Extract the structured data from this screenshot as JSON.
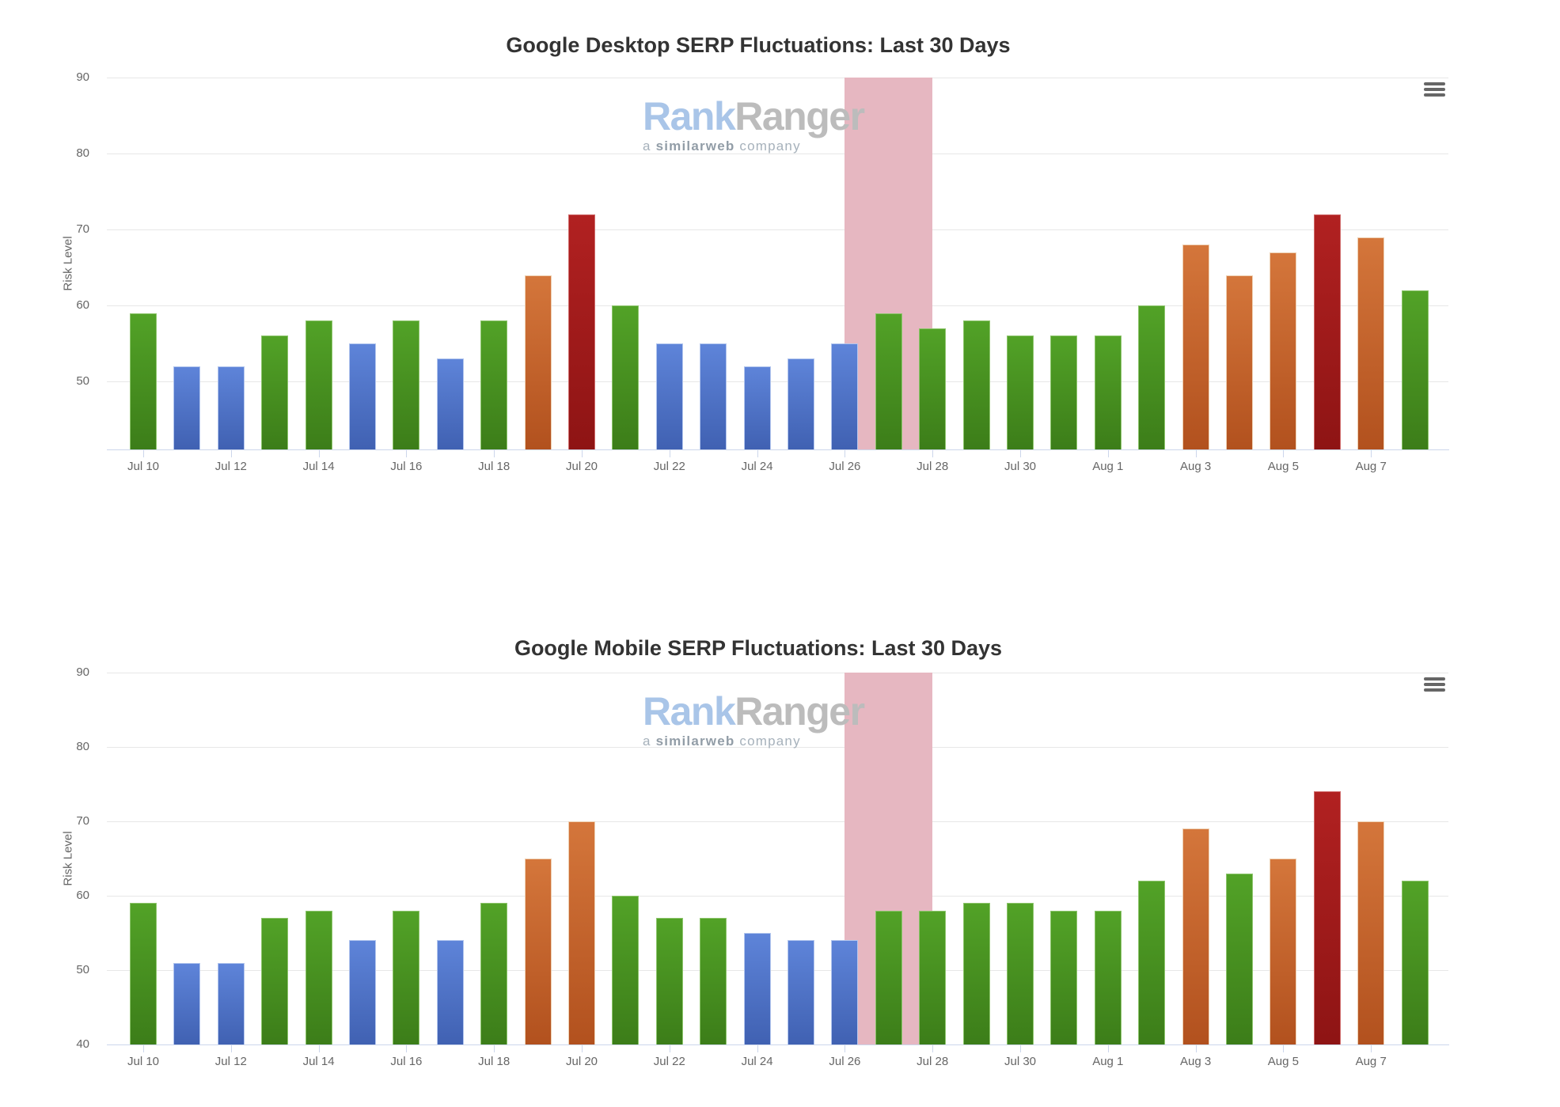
{
  "watermark": {
    "brand_part1": "Rank",
    "brand_part2": "Ranger",
    "tagline_prefix": "a",
    "tagline_bold": "similarweb",
    "tagline_suffix": "company",
    "brand_part1_color": "#a9c5e8",
    "brand_part2_color": "#bcbcbc"
  },
  "colors": {
    "background": "#ffffff",
    "title": "#333333",
    "axis_label": "#666666",
    "gridline": "#e7e7e7",
    "axis_line": "#ccd6eb",
    "highlight_band": "#e6b7c1",
    "menu_icon": "#666666"
  },
  "palette": {
    "blue": {
      "top": "#5e84d9",
      "bottom": "#4061b2",
      "border": "#b3c6ee"
    },
    "green": {
      "top": "#52a227",
      "bottom": "#3c7d19",
      "border": "#8dc56c"
    },
    "orange": {
      "top": "#d4763b",
      "bottom": "#b2511e",
      "border": "#eed0b2"
    },
    "red": {
      "top": "#b12121",
      "bottom": "#8e1414",
      "border": "#cf6b6b"
    }
  },
  "color_thresholds": {
    "blue_max": 55,
    "green_max": 63,
    "orange_max": 70
  },
  "chart_data": [
    {
      "type": "bar",
      "title": "Google Desktop SERP Fluctuations: Last 30 Days",
      "ylabel": "Risk Level",
      "xlabel": "",
      "categories": [
        "Jul 10",
        "Jul 11",
        "Jul 12",
        "Jul 13",
        "Jul 14",
        "Jul 15",
        "Jul 16",
        "Jul 17",
        "Jul 18",
        "Jul 19",
        "Jul 20",
        "Jul 21",
        "Jul 22",
        "Jul 23",
        "Jul 24",
        "Jul 25",
        "Jul 26",
        "Jul 27",
        "Jul 28",
        "Jul 29",
        "Jul 30",
        "Jul 31",
        "Aug 1",
        "Aug 2",
        "Aug 3",
        "Aug 4",
        "Aug 5",
        "Aug 6",
        "Aug 7",
        "Aug 8"
      ],
      "values": [
        59,
        52,
        52,
        56,
        58,
        55,
        58,
        53,
        58,
        64,
        72,
        60,
        55,
        55,
        52,
        53,
        55,
        59,
        57,
        58,
        56,
        56,
        56,
        60,
        68,
        64,
        67,
        72,
        69,
        62
      ],
      "ymin": 41,
      "ymax": 90,
      "yticks": [
        50,
        60,
        70,
        80,
        90
      ],
      "xlabel_every": 2,
      "grid": "on",
      "legend": "none",
      "band": {
        "from": "Jul 26",
        "to": "Jul 28"
      }
    },
    {
      "type": "bar",
      "title": "Google Mobile SERP Fluctuations: Last 30 Days",
      "ylabel": "Risk Level",
      "xlabel": "",
      "categories": [
        "Jul 10",
        "Jul 11",
        "Jul 12",
        "Jul 13",
        "Jul 14",
        "Jul 15",
        "Jul 16",
        "Jul 17",
        "Jul 18",
        "Jul 19",
        "Jul 20",
        "Jul 21",
        "Jul 22",
        "Jul 23",
        "Jul 24",
        "Jul 25",
        "Jul 26",
        "Jul 27",
        "Jul 28",
        "Jul 29",
        "Jul 30",
        "Jul 31",
        "Aug 1",
        "Aug 2",
        "Aug 3",
        "Aug 4",
        "Aug 5",
        "Aug 6",
        "Aug 7",
        "Aug 8"
      ],
      "values": [
        59,
        51,
        51,
        57,
        58,
        54,
        58,
        54,
        59,
        65,
        70,
        60,
        57,
        57,
        55,
        54,
        54,
        58,
        58,
        59,
        59,
        58,
        58,
        62,
        69,
        63,
        65,
        74,
        70,
        62
      ],
      "ymin": 40,
      "ymax": 90,
      "yticks": [
        40,
        50,
        60,
        70,
        80,
        90
      ],
      "xlabel_every": 2,
      "grid": "on",
      "legend": "none",
      "band": {
        "from": "Jul 26",
        "to": "Jul 28"
      }
    }
  ]
}
